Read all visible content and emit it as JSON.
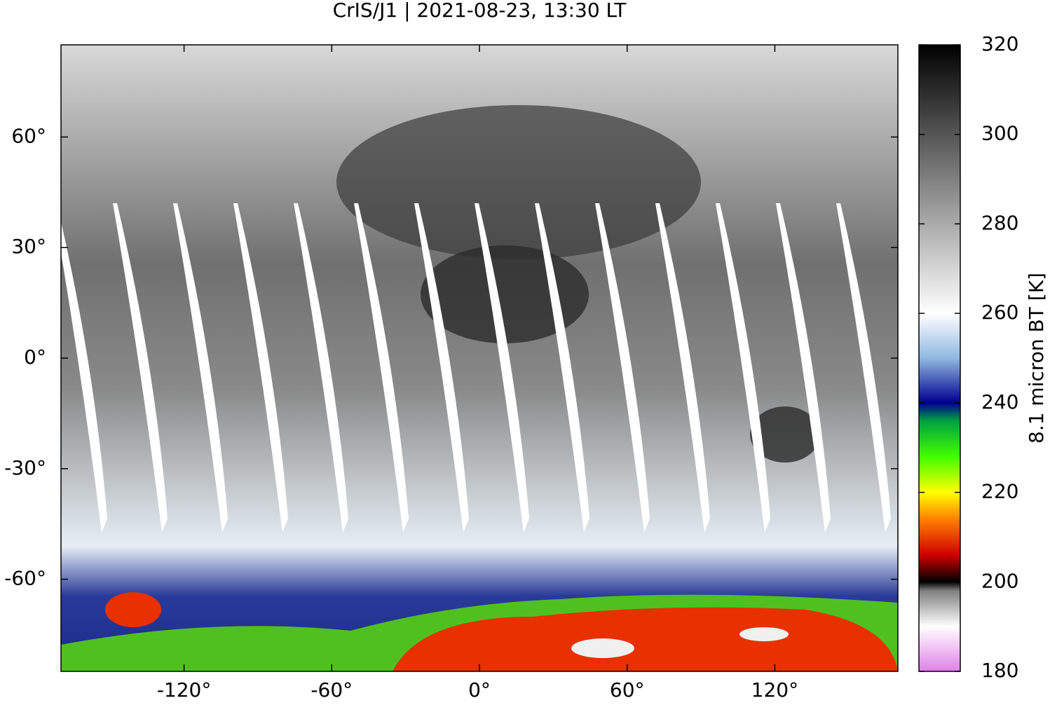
{
  "chart_data": {
    "type": "map",
    "title": "CrIS/J1 | 2021-08-23, 13:30 LT",
    "xlim": [
      -170,
      170
    ],
    "ylim": [
      -85,
      85
    ],
    "xticks": [
      {
        "value": -120,
        "label": "-120°"
      },
      {
        "value": -60,
        "label": "-60°"
      },
      {
        "value": 0,
        "label": "0°"
      },
      {
        "value": 60,
        "label": "60°"
      },
      {
        "value": 120,
        "label": "120°"
      }
    ],
    "yticks": [
      {
        "value": 60,
        "label": "60°"
      },
      {
        "value": 30,
        "label": "30°"
      },
      {
        "value": 0,
        "label": "0°"
      },
      {
        "value": -30,
        "label": "-30°"
      },
      {
        "value": -60,
        "label": "-60°"
      }
    ],
    "colorbar": {
      "label": "8.1 micron BT [K]",
      "lim": [
        180,
        320
      ],
      "ticks": [
        180,
        200,
        220,
        240,
        260,
        280,
        300,
        320
      ],
      "colormap": [
        {
          "value": 180,
          "color": "#e080e8"
        },
        {
          "value": 190,
          "color": "#ffffff"
        },
        {
          "value": 198,
          "color": "#808080"
        },
        {
          "value": 200,
          "color": "#000000"
        },
        {
          "value": 206,
          "color": "#d00000"
        },
        {
          "value": 214,
          "color": "#ff8000"
        },
        {
          "value": 220,
          "color": "#ffff00"
        },
        {
          "value": 228,
          "color": "#40ff00"
        },
        {
          "value": 236,
          "color": "#00a040"
        },
        {
          "value": 240,
          "color": "#000090"
        },
        {
          "value": 250,
          "color": "#90b8e0"
        },
        {
          "value": 260,
          "color": "#ffffff"
        },
        {
          "value": 320,
          "color": "#000000"
        }
      ]
    }
  }
}
